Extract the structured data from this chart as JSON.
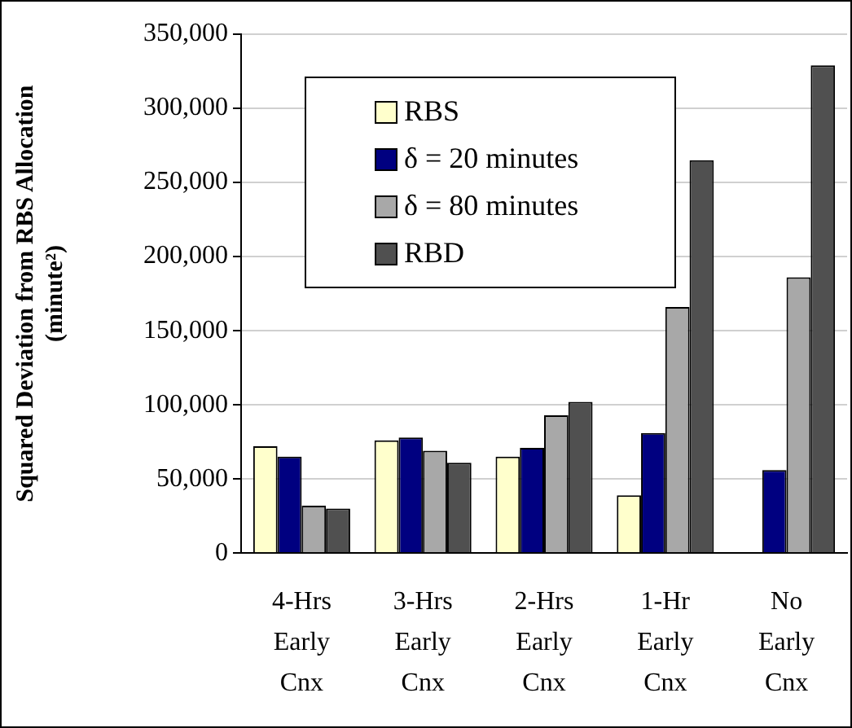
{
  "chart_data": {
    "type": "bar",
    "ylabel": "Squared Deviation from RBS Allocation (minute²)",
    "categories": [
      "4-Hrs Early Cnx",
      "3-Hrs Early Cnx",
      "2-Hrs Early Cnx",
      "1-Hr Early Cnx",
      "No Early Cnx"
    ],
    "series": [
      {
        "name": "RBS",
        "color": "#ffffcc",
        "values": [
          72000,
          76000,
          65000,
          39000,
          0
        ]
      },
      {
        "name": "δ = 20 minutes",
        "color": "#000080",
        "values": [
          65000,
          78000,
          71000,
          81000,
          56000
        ]
      },
      {
        "name": "δ = 80 minutes",
        "color": "#a8a8a8",
        "values": [
          32000,
          69000,
          93000,
          166000,
          186000
        ]
      },
      {
        "name": "RBD",
        "color": "#505050",
        "values": [
          30000,
          61000,
          102000,
          265000,
          329000
        ]
      }
    ],
    "ylim": [
      0,
      350000
    ],
    "yticks": [
      0,
      {
        "value": 50000,
        "label": "50,000"
      },
      {
        "value": 100000,
        "label": "100,000"
      },
      {
        "value": 150000,
        "label": "150,000"
      },
      {
        "value": 200000,
        "label": "200,000"
      },
      {
        "value": 250000,
        "label": "250,000"
      },
      {
        "value": 300000,
        "label": "300,000"
      },
      {
        "value": 350000,
        "label": "350,000"
      }
    ],
    "grid": "y",
    "legend": "top left"
  }
}
